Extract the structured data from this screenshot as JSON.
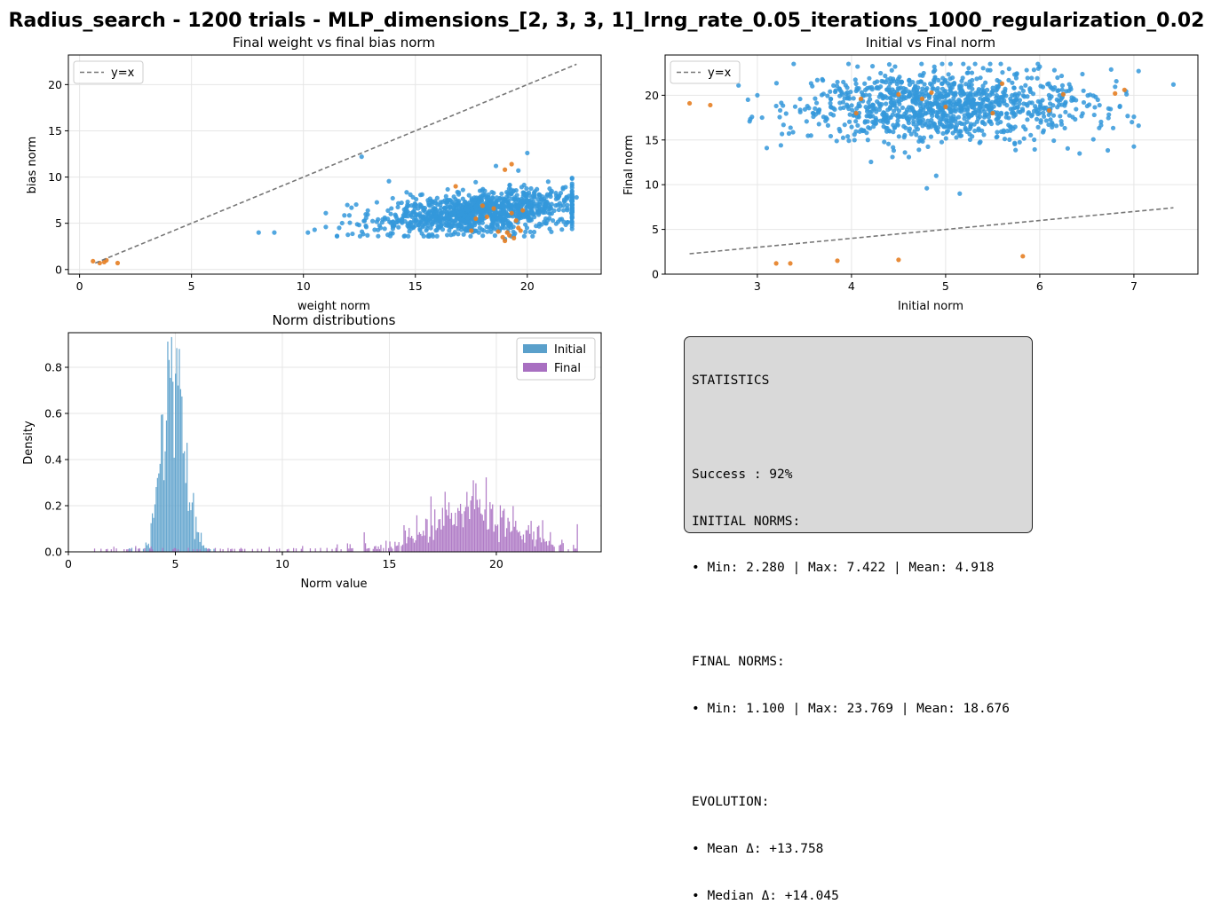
{
  "figure": {
    "suptitle": "Radius_search - 1200 trials - MLP_dimensions_[2, 3, 3, 1]_lrng_rate_0.05_iterations_1000_regularization_0.02"
  },
  "colors": {
    "success": "#3498db",
    "failure": "#e67e22",
    "initial_hist": "#5aa0cb",
    "final_hist": "#a86fc1",
    "reference_line": "#777777"
  },
  "chart_data": [
    {
      "type": "scatter",
      "title": "Final weight vs final bias norm",
      "xlabel": "weight norm",
      "ylabel": "bias norm",
      "xlim": [
        -0.5,
        23.3
      ],
      "ylim": [
        -0.5,
        23.2
      ],
      "xticks": [
        0,
        5,
        10,
        15,
        20
      ],
      "yticks": [
        0,
        5,
        10,
        15,
        20
      ],
      "grid": true,
      "legend": {
        "position": "top-left",
        "entries": [
          "y=x"
        ]
      },
      "reference_line": {
        "name": "y=x",
        "x": [
          0.7,
          22.2
        ],
        "y": [
          0.7,
          22.2
        ]
      },
      "series": [
        {
          "color": "#3498db",
          "cluster": {
            "x_mean": 17.5,
            "x_sd": 2.3,
            "y_mean": 6.0,
            "y_sd": 1.1,
            "count": 1100
          },
          "points": [
            [
              8.0,
              4.0
            ],
            [
              8.7,
              4.0
            ],
            [
              10.2,
              4.0
            ],
            [
              10.5,
              4.3
            ],
            [
              11.0,
              4.6
            ],
            [
              11.0,
              6.1
            ],
            [
              12.6,
              12.2
            ],
            [
              18.6,
              11.2
            ],
            [
              19.6,
              10.7
            ],
            [
              20.0,
              12.6
            ],
            [
              22.2,
              7.8
            ],
            [
              21.0,
              4.4
            ],
            [
              19.0,
              3.3
            ]
          ]
        },
        {
          "color": "#e67e22",
          "points": [
            [
              0.6,
              0.9
            ],
            [
              0.9,
              0.7
            ],
            [
              1.1,
              0.8
            ],
            [
              1.2,
              1.0
            ],
            [
              1.7,
              0.7
            ],
            [
              16.8,
              9.0
            ],
            [
              17.5,
              4.2
            ],
            [
              18.2,
              5.7
            ],
            [
              18.5,
              6.6
            ],
            [
              18.7,
              4.1
            ],
            [
              18.9,
              3.5
            ],
            [
              19.0,
              3.1
            ],
            [
              19.1,
              4.0
            ],
            [
              19.2,
              3.7
            ],
            [
              19.3,
              6.1
            ],
            [
              19.4,
              3.4
            ],
            [
              19.5,
              5.3
            ],
            [
              19.6,
              4.5
            ],
            [
              19.7,
              4.2
            ],
            [
              19.8,
              6.4
            ],
            [
              19.0,
              10.8
            ],
            [
              19.3,
              11.4
            ],
            [
              18.0,
              6.9
            ],
            [
              17.7,
              5.5
            ]
          ]
        }
      ]
    },
    {
      "type": "scatter",
      "title": "Initial vs Final norm",
      "xlabel": "Initial norm",
      "ylabel": "Final norm",
      "xlim": [
        2.02,
        7.68
      ],
      "ylim": [
        0,
        24.5
      ],
      "xticks": [
        3,
        4,
        5,
        6,
        7
      ],
      "yticks": [
        0,
        5,
        10,
        15,
        20
      ],
      "grid": true,
      "legend": {
        "position": "top-left",
        "entries": [
          "y=x"
        ]
      },
      "reference_line": {
        "name": "y=x",
        "x": [
          2.28,
          7.42
        ],
        "y": [
          2.28,
          7.42
        ]
      },
      "series": [
        {
          "color": "#3498db",
          "cluster": {
            "x_mean": 4.95,
            "x_sd": 0.75,
            "y_mean": 18.8,
            "y_sd": 1.9,
            "count": 1100
          },
          "points": [
            [
              2.8,
              21.1
            ],
            [
              2.9,
              19.5
            ],
            [
              3.0,
              20.0
            ],
            [
              3.05,
              17.5
            ],
            [
              3.1,
              14.1
            ],
            [
              3.25,
              14.4
            ],
            [
              3.2,
              18.8
            ],
            [
              4.8,
              9.6
            ],
            [
              5.15,
              9.0
            ],
            [
              4.9,
              11.0
            ],
            [
              7.05,
              22.7
            ],
            [
              7.42,
              21.2
            ],
            [
              7.05,
              16.6
            ],
            [
              6.85,
              18.7
            ],
            [
              6.0,
              23.2
            ]
          ]
        },
        {
          "color": "#e67e22",
          "points": [
            [
              2.28,
              19.1
            ],
            [
              2.5,
              18.9
            ],
            [
              3.2,
              1.2
            ],
            [
              3.35,
              1.2
            ],
            [
              3.85,
              1.5
            ],
            [
              4.5,
              1.6
            ],
            [
              5.82,
              2.0
            ],
            [
              4.05,
              18.0
            ],
            [
              4.1,
              19.6
            ],
            [
              4.5,
              20.1
            ],
            [
              4.75,
              19.6
            ],
            [
              4.85,
              20.3
            ],
            [
              5.0,
              18.7
            ],
            [
              5.5,
              18.0
            ],
            [
              5.6,
              21.3
            ],
            [
              6.1,
              18.3
            ],
            [
              6.25,
              20.1
            ],
            [
              6.8,
              20.2
            ],
            [
              6.9,
              20.6
            ]
          ]
        }
      ]
    },
    {
      "type": "histogram",
      "title": "Norm distributions",
      "xlabel": "Norm value",
      "ylabel": "Density",
      "xlim": [
        0,
        24.9
      ],
      "ylim": [
        0,
        0.95
      ],
      "xticks": [
        0,
        5,
        10,
        15,
        20
      ],
      "yticks": [
        0.0,
        0.2,
        0.4,
        0.6,
        0.8
      ],
      "grid": true,
      "legend": {
        "position": "top-right",
        "entries": [
          "Initial",
          "Final"
        ]
      },
      "series": [
        {
          "name": "Initial",
          "color": "#5aa0cb",
          "range": [
            2.28,
            7.42
          ],
          "mean": 4.918,
          "sd": 0.55,
          "peak_density": 0.9
        },
        {
          "name": "Final",
          "color": "#a86fc1",
          "range": [
            1.1,
            23.769
          ],
          "mean": 19.0,
          "sd": 1.9,
          "peak_density": 0.43
        }
      ]
    }
  ],
  "stats": {
    "lines": [
      "STATISTICS",
      "",
      "Success : 92%",
      "INITIAL NORMS:",
      "• Min: 2.280 | Max: 7.422 | Mean: 4.918",
      "",
      "FINAL NORMS:",
      "• Min: 1.100 | Max: 23.769 | Mean: 18.676",
      "",
      "EVOLUTION:",
      "• Mean Δ: +13.758",
      "• Median Δ: +14.045"
    ]
  }
}
